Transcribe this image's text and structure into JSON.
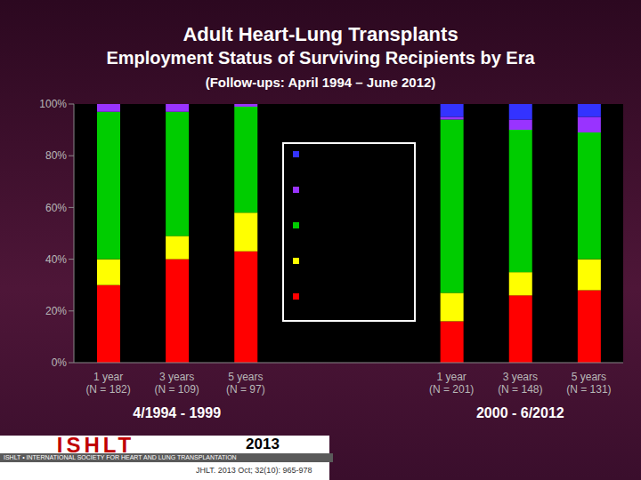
{
  "chart_data": {
    "type": "bar",
    "title": "Adult Heart-Lung Transplants",
    "subtitle": "Employment Status of Surviving Recipients by Era",
    "subtitle2": "(Follow-ups: April 1994 – June 2012)",
    "categories": [
      "1 year\n(N = 182)",
      "3 years\n(N = 109)",
      "5 years\n(N = 97)",
      null,
      null,
      "1 year\n(N = 201)",
      "3 years\n(N = 148)",
      "5 years\n(N = 131)"
    ],
    "series": [
      {
        "color": "#ff0000",
        "values": [
          30,
          40,
          43,
          null,
          null,
          16,
          26,
          28
        ]
      },
      {
        "color": "#ffff00",
        "values": [
          10,
          9,
          15,
          null,
          null,
          11,
          9,
          12
        ]
      },
      {
        "color": "#00cc00",
        "values": [
          57,
          48,
          41,
          null,
          null,
          67,
          55,
          49
        ]
      },
      {
        "color": "#9933ff",
        "values": [
          3,
          3,
          1,
          null,
          null,
          1,
          4,
          6
        ]
      },
      {
        "color": "#3333ff",
        "values": [
          0,
          0,
          0,
          null,
          null,
          5,
          6,
          5
        ]
      }
    ],
    "stacked": true,
    "ylim": [
      0,
      100
    ],
    "yticks": [
      {
        "value": 0,
        "label": "0%"
      },
      {
        "value": 20,
        "label": "20%"
      },
      {
        "value": 40,
        "label": "40%"
      },
      {
        "value": 60,
        "label": "60%"
      },
      {
        "value": 80,
        "label": "80%"
      },
      {
        "value": 100,
        "label": "100%"
      }
    ],
    "grid": false,
    "legend": "center",
    "annotations": [
      "4/1994 - 1999",
      "2000 - 6/2012"
    ],
    "footer": {
      "logo": "ISHLT",
      "org": "ISHLT • INTERNATIONAL SOCIETY FOR HEART AND LUNG TRANSPLANTATION",
      "year": "2013",
      "citation": "JHLT. 2013 Oct; 32(10): 965-978"
    }
  }
}
